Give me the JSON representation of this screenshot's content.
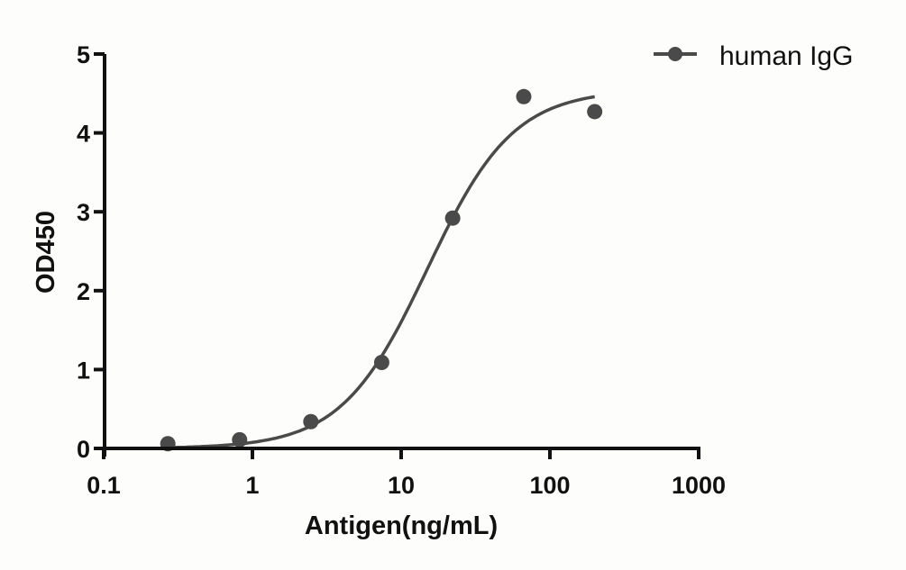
{
  "chart_data": {
    "type": "scatter",
    "title": "",
    "xlabel": "Antigen(ng/mL)",
    "ylabel": "OD450",
    "xscale": "log",
    "xlim": [
      0.1,
      1000
    ],
    "ylim": [
      0,
      5
    ],
    "xticks": [
      0.1,
      1,
      10,
      100,
      1000
    ],
    "xtick_labels": [
      "0.1",
      "1",
      "10",
      "100",
      "1000"
    ],
    "yticks": [
      0,
      1,
      2,
      3,
      4,
      5
    ],
    "ytick_labels": [
      "0",
      "1",
      "2",
      "3",
      "4",
      "5"
    ],
    "grid": false,
    "legend_position": "top-right",
    "series": [
      {
        "name": "human IgG",
        "color": "#4a4a4a",
        "marker": "circle",
        "x": [
          0.27,
          0.82,
          2.47,
          7.4,
          22.2,
          66.7,
          200
        ],
        "y": [
          0.06,
          0.11,
          0.34,
          1.09,
          2.92,
          4.46,
          4.27
        ],
        "fit": {
          "model": "4PL",
          "bottom": 0.0,
          "top": 4.55,
          "ec50": 15,
          "hill": 1.5,
          "x_range": [
            0.27,
            200
          ]
        }
      }
    ]
  }
}
